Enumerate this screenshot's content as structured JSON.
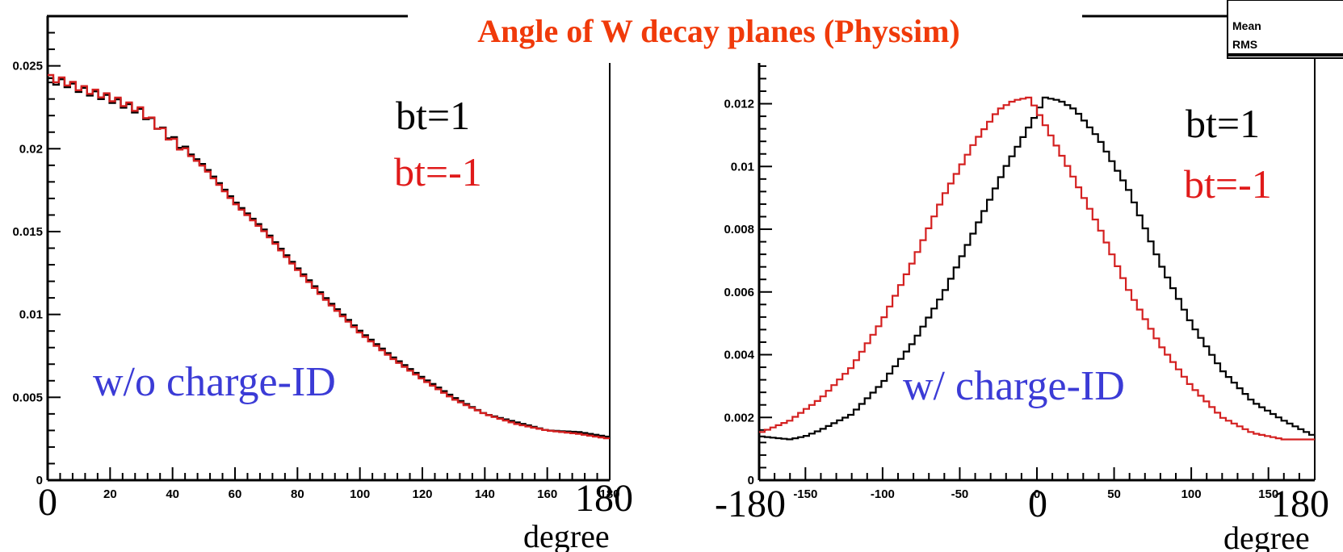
{
  "title": "Angle of W decay planes (Physsim)",
  "stats_box": {
    "labels": [
      "Mean",
      "RMS"
    ]
  },
  "chart_data": [
    {
      "type": "line",
      "step": true,
      "xlim": [
        0,
        180
      ],
      "ylim": [
        0,
        0.028
      ],
      "xticks": [
        20,
        40,
        60,
        80,
        100,
        120,
        140,
        160,
        180
      ],
      "yticks": [
        0,
        0.005,
        0.01,
        0.015,
        0.02,
        0.025
      ],
      "ytick_labels": [
        "0",
        "0.005",
        "0.01",
        "0.015",
        "0.02",
        "0.025"
      ],
      "endpoint_labels": {
        "left": "0",
        "right": "180"
      },
      "unit_label": "degree",
      "legend": [
        "bt=1",
        "bt=-1"
      ],
      "annotation": "w/o charge-ID",
      "series": [
        {
          "name": "bt=1",
          "color": "#000000",
          "points": [
            [
              0,
              0.0241
            ],
            [
              5,
              0.024
            ],
            [
              10,
              0.0236
            ],
            [
              20,
              0.023
            ],
            [
              30,
              0.0222
            ],
            [
              40,
              0.0206
            ],
            [
              50,
              0.019
            ],
            [
              60,
              0.0168
            ],
            [
              70,
              0.015
            ],
            [
              80,
              0.0128
            ],
            [
              90,
              0.0108
            ],
            [
              100,
              0.009
            ],
            [
              110,
              0.0075
            ],
            [
              120,
              0.0062
            ],
            [
              130,
              0.005
            ],
            [
              140,
              0.004
            ],
            [
              150,
              0.0035
            ],
            [
              160,
              0.003
            ],
            [
              170,
              0.0029
            ],
            [
              180,
              0.0026
            ]
          ]
        },
        {
          "name": "bt=-1",
          "color": "#d42020",
          "points": [
            [
              0,
              0.0243
            ],
            [
              5,
              0.0241
            ],
            [
              10,
              0.0237
            ],
            [
              20,
              0.0231
            ],
            [
              30,
              0.0223
            ],
            [
              40,
              0.0205
            ],
            [
              50,
              0.0189
            ],
            [
              60,
              0.0167
            ],
            [
              70,
              0.0149
            ],
            [
              80,
              0.0127
            ],
            [
              90,
              0.0107
            ],
            [
              100,
              0.0089
            ],
            [
              110,
              0.0074
            ],
            [
              120,
              0.0061
            ],
            [
              130,
              0.0049
            ],
            [
              140,
              0.004
            ],
            [
              150,
              0.0034
            ],
            [
              160,
              0.003
            ],
            [
              170,
              0.0028
            ],
            [
              180,
              0.0025
            ]
          ]
        }
      ]
    },
    {
      "type": "line",
      "step": true,
      "xlim": [
        -180,
        180
      ],
      "ylim": [
        0,
        0.0133
      ],
      "xticks": [
        -150,
        -100,
        -50,
        0,
        50,
        100,
        150
      ],
      "yticks": [
        0,
        0.002,
        0.004,
        0.006,
        0.008,
        0.01,
        0.012
      ],
      "ytick_labels": [
        "0",
        "0.002",
        "0.004",
        "0.006",
        "0.008",
        "0.01",
        "0.012"
      ],
      "endpoint_labels": {
        "left": "-180",
        "center": "0",
        "right": "180"
      },
      "unit_label": "degree",
      "legend": [
        "bt=1",
        "bt=-1"
      ],
      "annotation": "w/ charge-ID",
      "series": [
        {
          "name": "bt=1",
          "color": "#000000",
          "points": [
            [
              -180,
              0.0014
            ],
            [
              -160,
              0.0013
            ],
            [
              -150,
              0.0014
            ],
            [
              -140,
              0.0016
            ],
            [
              -120,
              0.0021
            ],
            [
              -100,
              0.0031
            ],
            [
              -80,
              0.0044
            ],
            [
              -60,
              0.006
            ],
            [
              -40,
              0.008
            ],
            [
              -20,
              0.01
            ],
            [
              0,
              0.0117
            ],
            [
              5,
              0.0122
            ],
            [
              15,
              0.0121
            ],
            [
              25,
              0.0118
            ],
            [
              40,
              0.0109
            ],
            [
              60,
              0.0092
            ],
            [
              80,
              0.0069
            ],
            [
              100,
              0.005
            ],
            [
              120,
              0.0035
            ],
            [
              140,
              0.0025
            ],
            [
              160,
              0.0019
            ],
            [
              180,
              0.0014
            ]
          ]
        },
        {
          "name": "bt=-1",
          "color": "#d42020",
          "points": [
            [
              -180,
              0.0015
            ],
            [
              -160,
              0.0019
            ],
            [
              -140,
              0.0026
            ],
            [
              -120,
              0.0036
            ],
            [
              -100,
              0.0051
            ],
            [
              -80,
              0.007
            ],
            [
              -60,
              0.0091
            ],
            [
              -40,
              0.0108
            ],
            [
              -25,
              0.0118
            ],
            [
              -15,
              0.0121
            ],
            [
              -5,
              0.0122
            ],
            [
              0,
              0.0118
            ],
            [
              20,
              0.01
            ],
            [
              40,
              0.0081
            ],
            [
              60,
              0.006
            ],
            [
              80,
              0.0043
            ],
            [
              100,
              0.003
            ],
            [
              120,
              0.002
            ],
            [
              140,
              0.0015
            ],
            [
              160,
              0.0013
            ],
            [
              180,
              0.0013
            ]
          ]
        }
      ]
    }
  ]
}
